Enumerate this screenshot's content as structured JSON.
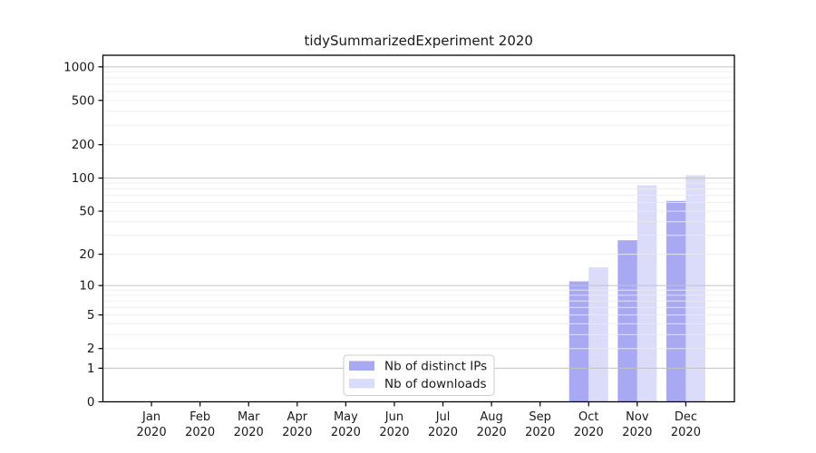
{
  "chart_data": {
    "type": "bar",
    "title": "tidySummarizedExperiment 2020",
    "categories": [
      "Jan",
      "Feb",
      "Mar",
      "Apr",
      "May",
      "Jun",
      "Jul",
      "Aug",
      "Sep",
      "Oct",
      "Nov",
      "Dec"
    ],
    "x_year": "2020",
    "series": [
      {
        "name": "Nb of distinct IPs",
        "color": "#a9a9f3",
        "values": [
          0,
          0,
          0,
          0,
          0,
          0,
          0,
          0,
          0,
          11,
          27,
          62
        ]
      },
      {
        "name": "Nb of downloads",
        "color": "#dbdbfa",
        "values": [
          0,
          0,
          0,
          0,
          0,
          0,
          0,
          0,
          0,
          15,
          86,
          106
        ]
      }
    ],
    "y_ticks": [
      0,
      1,
      2,
      5,
      10,
      20,
      50,
      100,
      200,
      500,
      1000
    ],
    "y_scale": "log1p",
    "ylim": [
      0,
      1270
    ],
    "grid": true,
    "major_gridlines": [
      1,
      10,
      100,
      1000
    ],
    "legend_position": "bottom-center",
    "colors": {
      "axis": "#000000",
      "major_grid": "#c3c3c3",
      "minor_grid": "#ececec",
      "legend_border": "#cccccc",
      "background": "#ffffff"
    }
  }
}
